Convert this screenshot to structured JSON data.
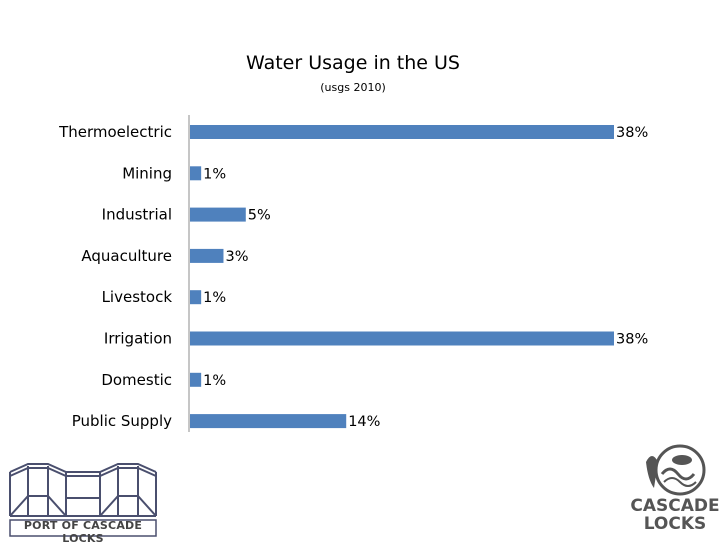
{
  "chart_data": {
    "type": "bar",
    "orientation": "horizontal",
    "title": "Water Usage in the US",
    "subtitle": "(usgs 2010)",
    "categories": [
      "Thermoelectric",
      "Mining",
      "Industrial",
      "Aquaculture",
      "Livestock",
      "Irrigation",
      "Domestic",
      "Public Supply"
    ],
    "values": [
      38,
      1,
      5,
      3,
      1,
      38,
      1,
      14
    ],
    "data_labels": [
      "38%",
      "1%",
      "5%",
      "3%",
      "1%",
      "38%",
      "1%",
      "14%"
    ],
    "xlim": [
      0,
      38
    ],
    "bar_color": "#4f81bd",
    "legend": "none",
    "grid": false
  },
  "logos": {
    "left_text": "PORT OF CASCADE LOCKS",
    "left_color": "#4a4f6e",
    "right_line1": "CASCADE",
    "right_line2": "LOCKS",
    "right_color": "#555555"
  }
}
